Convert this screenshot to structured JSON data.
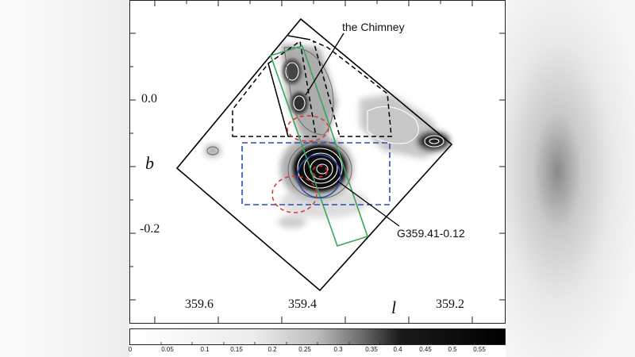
{
  "figure": {
    "annotations": {
      "chimney": "the Chimney",
      "source": "G359.41-0.12"
    },
    "x_axis": {
      "label": "l",
      "ticks": [
        "359.6",
        "359.4",
        "359.2"
      ]
    },
    "y_axis": {
      "label": "b",
      "ticks": [
        "0.0",
        "-0.2"
      ]
    },
    "colorbar": {
      "ticks": [
        "0",
        "0.05",
        "0.1",
        "0.15",
        "0.2",
        "0.25",
        "0.3",
        "0.35",
        "0.4",
        "0.45",
        "0.5",
        "0.55"
      ],
      "range": [
        0,
        0.6
      ],
      "colormap": "white-to-black"
    },
    "regions": [
      {
        "name": "source-circle",
        "color": "#2a4db0",
        "style": "solid"
      },
      {
        "name": "background-box",
        "color": "#2a4db0",
        "style": "dashed"
      },
      {
        "name": "chimney-strip",
        "color": "#3aa55a",
        "style": "solid"
      },
      {
        "name": "red-ellipses",
        "color": "#e03030",
        "style": "dashed"
      },
      {
        "name": "upper-regions",
        "color": "#000000",
        "style": "dashed"
      },
      {
        "name": "field-of-view",
        "color": "#000000",
        "style": "solid"
      }
    ]
  }
}
